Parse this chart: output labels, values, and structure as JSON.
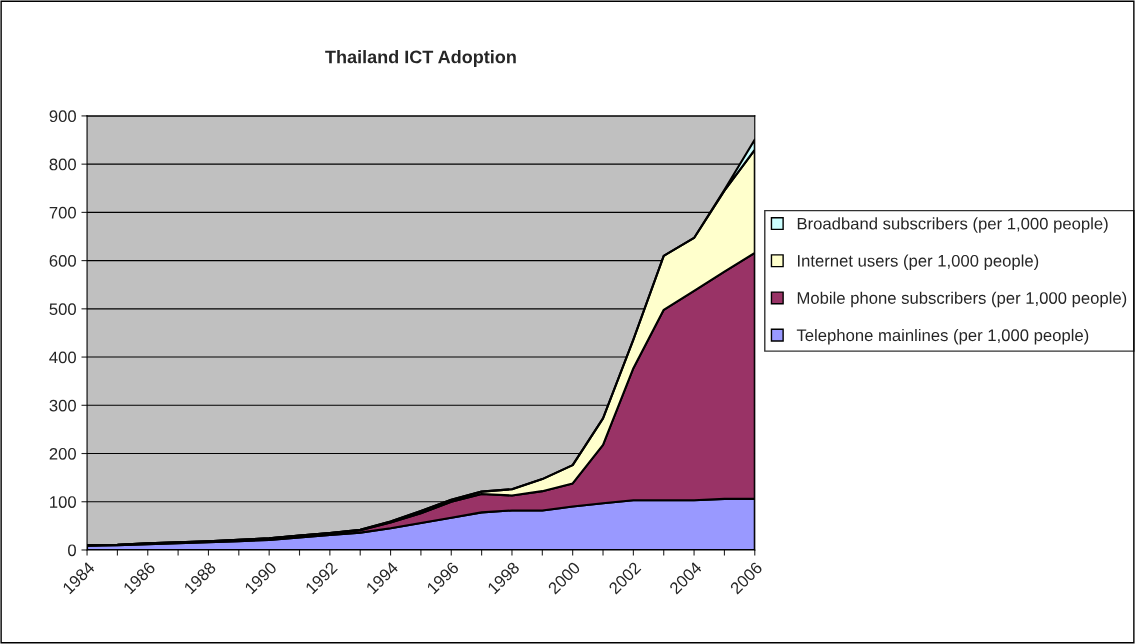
{
  "chart_data": {
    "type": "area",
    "stacked": true,
    "title": "Thailand ICT Adoption",
    "categories": [
      "1984",
      null,
      "1986",
      null,
      "1988",
      null,
      "1990",
      null,
      "1992",
      null,
      "1994",
      null,
      "1996",
      null,
      "1998",
      null,
      "2000",
      null,
      "2002",
      null,
      "2004",
      null,
      "2006"
    ],
    "series": [
      {
        "name": "Telephone mainlines (per 1,000 people)",
        "color": "#9999ff",
        "values": [
          9,
          10,
          12,
          14,
          16,
          18,
          21,
          26,
          31,
          36,
          45,
          56,
          67,
          78,
          82,
          82,
          90,
          97,
          103,
          103,
          103,
          106,
          106
        ]
      },
      {
        "name": "Mobile phone subscribers (per 1,000 people)",
        "color": "#993366",
        "values": [
          1,
          1,
          2,
          2,
          2,
          3,
          3,
          4,
          4,
          5,
          12,
          20,
          33,
          38,
          31,
          40,
          48,
          121,
          274,
          395,
          434,
          471,
          510
        ]
      },
      {
        "name": "Internet users (per 1,000 people)",
        "color": "#ffffcc",
        "values": [
          0,
          0,
          0,
          0,
          0,
          0,
          0,
          0,
          0,
          1,
          2,
          5,
          4,
          5,
          13,
          25,
          38,
          55,
          59,
          112,
          110,
          168,
          214
        ]
      },
      {
        "name": "Broadband subscribers (per 1,000 people)",
        "color": "#ccffff",
        "values": [
          0,
          0,
          0,
          0,
          0,
          0,
          0,
          0,
          0,
          0,
          0,
          0,
          0,
          0,
          0,
          0,
          0,
          0,
          0,
          0,
          0,
          2,
          21
        ]
      }
    ],
    "ylim": [
      0,
      900
    ],
    "yticks": [
      0,
      100,
      200,
      300,
      400,
      500,
      600,
      700,
      800,
      900
    ],
    "grid": "y",
    "legend": "right"
  }
}
